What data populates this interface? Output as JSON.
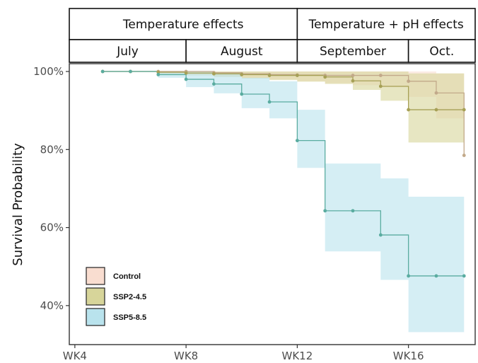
{
  "chart_data": {
    "type": "line",
    "step": true,
    "ylabel": "Survival Probability",
    "xlim": [
      3.8,
      18.4
    ],
    "ylim": [
      30,
      102
    ],
    "x_ticks": [
      {
        "x": 4,
        "label": "WK4"
      },
      {
        "x": 8,
        "label": "WK8"
      },
      {
        "x": 12,
        "label": "WK12"
      },
      {
        "x": 16,
        "label": "WK16"
      }
    ],
    "y_ticks": [
      {
        "y": 40,
        "label": "40%"
      },
      {
        "y": 60,
        "label": "60%"
      },
      {
        "y": 80,
        "label": "80%"
      },
      {
        "y": 100,
        "label": "100%"
      }
    ],
    "phases": [
      {
        "label": "Temperature effects",
        "x_start": 3.8,
        "x_end": 12
      },
      {
        "label": "Temperature + pH effects",
        "x_start": 12,
        "x_end": 18.4
      }
    ],
    "months": [
      {
        "label": "July",
        "x_start": 3.8,
        "x_end": 8
      },
      {
        "label": "August",
        "x_start": 8,
        "x_end": 12
      },
      {
        "label": "September",
        "x_start": 12,
        "x_end": 16
      },
      {
        "label": "Oct.",
        "x_start": 16,
        "x_end": 18.4
      }
    ],
    "series": [
      {
        "name": "Control",
        "color": "#c2a98a",
        "fill": "#f9ddd0",
        "x": [
          5,
          6,
          7,
          8,
          9,
          10,
          11,
          12,
          13,
          14,
          15,
          16,
          17,
          18
        ],
        "y": [
          100,
          100,
          100,
          100,
          99.7,
          99.4,
          99.2,
          99.1,
          99.0,
          99.0,
          99.0,
          97.5,
          94.5,
          78.5
        ],
        "ci_lower": [
          100,
          100,
          99.6,
          99.2,
          98.8,
          98.4,
          98.0,
          97.5,
          97.0,
          96.5,
          96.0,
          93.5,
          88.0,
          78.0
        ],
        "ci_upper": [
          100,
          100,
          100,
          100,
          100,
          100,
          100,
          100,
          100,
          100,
          100,
          100,
          99.5,
          99.5
        ]
      },
      {
        "name": "SSP2-4.5",
        "color": "#a6a056",
        "fill": "#d7d59a",
        "x": [
          5,
          6,
          7,
          8,
          9,
          10,
          11,
          12,
          13,
          14,
          15,
          16,
          17,
          18
        ],
        "y": [
          100,
          100,
          99.8,
          99.6,
          99.4,
          99.2,
          99.0,
          99.0,
          98.6,
          97.6,
          96.2,
          90.2,
          90.2,
          90.2
        ],
        "ci_lower": [
          100,
          100,
          99.4,
          99.0,
          98.6,
          98.2,
          97.8,
          97.4,
          96.8,
          95.3,
          92.5,
          81.8,
          81.8,
          81.8
        ],
        "ci_upper": [
          100,
          100,
          100,
          100,
          100,
          100,
          100,
          100,
          100,
          100,
          100,
          99.5,
          99.5,
          99.5
        ]
      },
      {
        "name": "SSP5-8.5",
        "color": "#5aaca0",
        "fill": "#b9e3ed",
        "x": [
          5,
          6,
          7,
          8,
          9,
          10,
          11,
          12,
          13,
          14,
          15,
          16,
          17,
          18
        ],
        "y": [
          100,
          100,
          99.2,
          98.0,
          96.8,
          94.2,
          92.2,
          82.3,
          64.3,
          64.3,
          58.1,
          47.6,
          47.6,
          47.6
        ],
        "ci_lower": [
          100,
          100,
          98.4,
          96.0,
          94.4,
          90.6,
          88.0,
          75.3,
          53.9,
          53.9,
          46.6,
          33.2,
          33.2,
          33.2
        ],
        "ci_upper": [
          100,
          100,
          100,
          100,
          99.8,
          98.4,
          97.5,
          90.2,
          76.4,
          76.4,
          72.6,
          67.9,
          67.9,
          67.9
        ]
      }
    ],
    "legend": {
      "position": "bottom-left",
      "entries": [
        "Control",
        "SSP2-4.5",
        "SSP5-8.5"
      ]
    },
    "grid": false
  }
}
